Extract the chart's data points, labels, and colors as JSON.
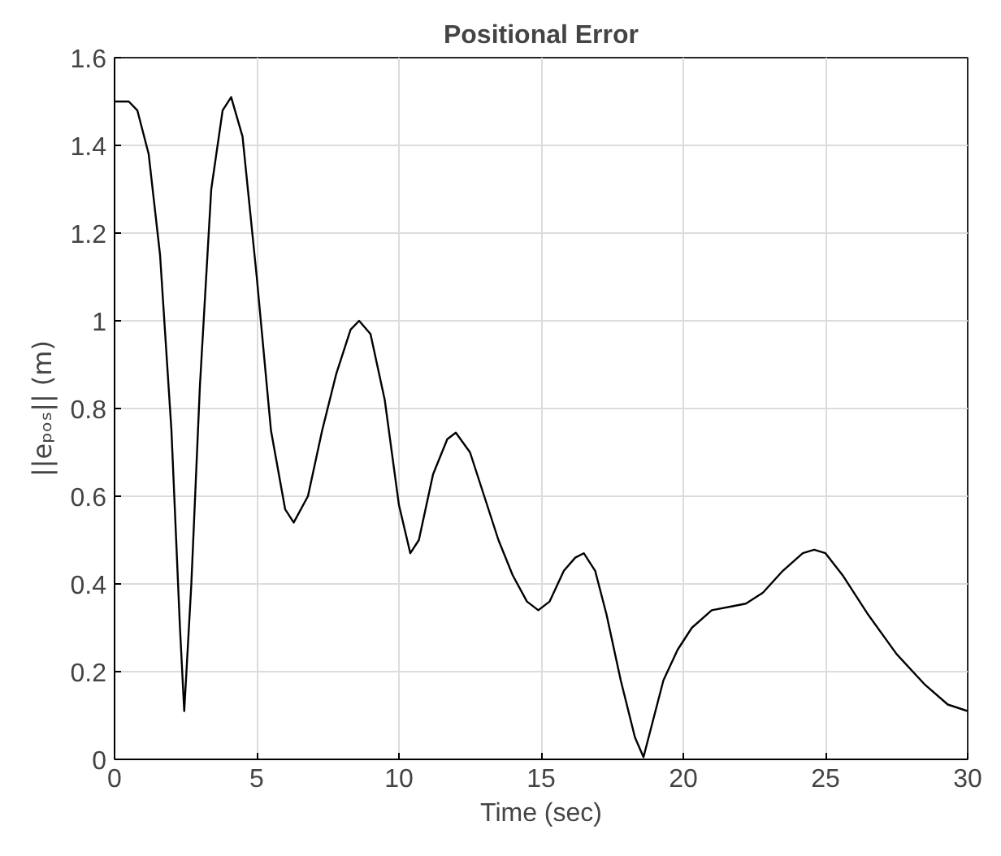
{
  "chart_data": {
    "type": "line",
    "title": "Positional Error",
    "xlabel": "Time (sec)",
    "ylabel": "||eₚₒₛ|| (m)",
    "x": [
      0,
      0.5,
      0.8,
      1.2,
      1.6,
      2.0,
      2.3,
      2.45,
      2.7,
      3.0,
      3.4,
      3.8,
      4.1,
      4.5,
      5.0,
      5.5,
      6.0,
      6.3,
      6.8,
      7.3,
      7.8,
      8.3,
      8.6,
      9.0,
      9.5,
      10.0,
      10.4,
      10.7,
      11.2,
      11.7,
      12.0,
      12.5,
      13.0,
      13.5,
      14.0,
      14.5,
      14.9,
      15.3,
      15.8,
      16.2,
      16.5,
      16.9,
      17.3,
      17.8,
      18.3,
      18.6,
      18.9,
      19.3,
      19.8,
      20.3,
      21.0,
      21.8,
      22.2,
      22.8,
      23.5,
      24.2,
      24.6,
      25.0,
      25.6,
      26.5,
      27.5,
      28.5,
      29.3,
      30
    ],
    "series": [
      {
        "color": "#000000",
        "values": [
          1.5,
          1.5,
          1.48,
          1.38,
          1.15,
          0.75,
          0.3,
          0.11,
          0.4,
          0.85,
          1.3,
          1.48,
          1.51,
          1.42,
          1.1,
          0.75,
          0.57,
          0.54,
          0.6,
          0.75,
          0.88,
          0.98,
          1.0,
          0.97,
          0.82,
          0.58,
          0.47,
          0.5,
          0.65,
          0.73,
          0.745,
          0.7,
          0.6,
          0.5,
          0.42,
          0.36,
          0.34,
          0.36,
          0.43,
          0.46,
          0.47,
          0.43,
          0.33,
          0.18,
          0.05,
          0.005,
          0.08,
          0.18,
          0.25,
          0.3,
          0.34,
          0.35,
          0.355,
          0.38,
          0.43,
          0.47,
          0.478,
          0.47,
          0.42,
          0.33,
          0.24,
          0.17,
          0.125,
          0.11
        ]
      }
    ],
    "xlim": [
      0,
      30
    ],
    "xticks": [
      0,
      5,
      10,
      15,
      20,
      25,
      30
    ],
    "ylim": [
      0,
      1.6
    ],
    "yticks": [
      0,
      0.2,
      0.4,
      0.6,
      0.8,
      1,
      1.2,
      1.4,
      1.6
    ],
    "grid": true,
    "line_style": "solid"
  }
}
